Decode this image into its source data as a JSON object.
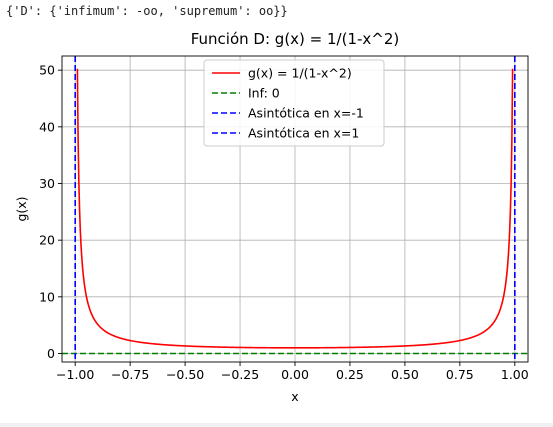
{
  "output_text": "{'D': {'infimum': -oo, 'supremum': oo}}",
  "chart_data": {
    "type": "line",
    "title": "Función D: g(x) = 1/(1-x^2)",
    "xlabel": "x",
    "ylabel": "g(x)",
    "xlim": [
      -1.06,
      1.06
    ],
    "ylim": [
      -1.5,
      52.5
    ],
    "xticks": [
      -1.0,
      -0.75,
      -0.5,
      -0.25,
      0.0,
      0.25,
      0.5,
      0.75,
      1.0
    ],
    "xtick_labels": [
      "−1.00",
      "−0.75",
      "−0.50",
      "−0.25",
      "0.00",
      "0.25",
      "0.50",
      "0.75",
      "1.00"
    ],
    "yticks": [
      0,
      10,
      20,
      30,
      40,
      50
    ],
    "ytick_labels": [
      "0",
      "10",
      "20",
      "30",
      "40",
      "50"
    ],
    "grid": true,
    "legend_position": "upper-center",
    "series": [
      {
        "name": "g(x) = 1/(1-x^2)",
        "color": "#ff0000",
        "style": "solid",
        "kind": "function",
        "function": "1/(1-x^2)",
        "domain": [
          -0.99,
          0.99
        ],
        "points": [
          [
            -0.99,
            50.25
          ],
          [
            -0.98,
            25.25
          ],
          [
            -0.95,
            10.26
          ],
          [
            -0.9,
            5.26
          ],
          [
            -0.8,
            2.78
          ],
          [
            -0.5,
            1.33
          ],
          [
            0.0,
            1.0
          ],
          [
            0.5,
            1.33
          ],
          [
            0.8,
            2.78
          ],
          [
            0.9,
            5.26
          ],
          [
            0.95,
            10.26
          ],
          [
            0.98,
            25.25
          ],
          [
            0.99,
            50.25
          ]
        ]
      },
      {
        "name": "Inf: 0",
        "color": "#008000",
        "style": "dashed",
        "kind": "hline",
        "y": 0
      },
      {
        "name": "Asintótica en x=-1",
        "color": "#0000ff",
        "style": "dashed",
        "kind": "vline",
        "x": -1
      },
      {
        "name": "Asintótica en x=1",
        "color": "#0000ff",
        "style": "dashed",
        "kind": "vline",
        "x": 1
      }
    ]
  }
}
